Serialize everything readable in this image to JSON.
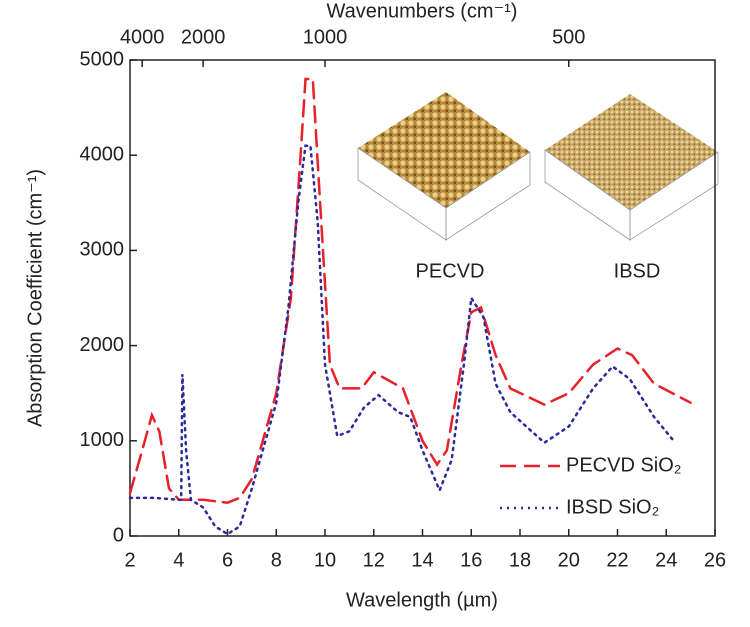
{
  "chart_data": {
    "type": "line",
    "x_label": "Wavelength (µm)",
    "y_label": "Absorption Coefficient (cm⁻¹)",
    "x2_label": "Wavenumbers (cm⁻¹)",
    "xlim": [
      2,
      26
    ],
    "xticks": [
      2,
      4,
      6,
      8,
      10,
      12,
      14,
      16,
      18,
      20,
      22,
      24,
      26
    ],
    "ylim": [
      0,
      5000
    ],
    "yticks": [
      0,
      1000,
      2000,
      3000,
      4000,
      5000
    ],
    "x2ticks": [
      4000,
      2000,
      1000,
      500
    ],
    "legend": "lower right",
    "insets": [
      {
        "label": "PECVD"
      },
      {
        "label": "IBSD"
      }
    ],
    "series": [
      {
        "name": "PECVD SiO₂",
        "color": "#e8202a",
        "dash": "dashed",
        "x": [
          2,
          2.5,
          2.9,
          3.2,
          3.6,
          4,
          5,
          6,
          6.5,
          7,
          8,
          8.6,
          9,
          9.2,
          9.5,
          9.8,
          10.2,
          10.6,
          11.5,
          12,
          12.5,
          13.2,
          14,
          14.6,
          15,
          15.6,
          16,
          16.4,
          17,
          17.6,
          19,
          20,
          21,
          22,
          22.6,
          23.5,
          25
        ],
        "values": [
          450,
          900,
          1270,
          1100,
          500,
          380,
          380,
          350,
          400,
          600,
          1500,
          2500,
          4000,
          4800,
          4800,
          3500,
          1800,
          1550,
          1550,
          1720,
          1650,
          1550,
          1000,
          750,
          900,
          1800,
          2350,
          2400,
          1900,
          1550,
          1380,
          1500,
          1800,
          1970,
          1900,
          1600,
          1400
        ]
      },
      {
        "name": "IBSD SiO₂",
        "color": "#2a2a9a",
        "dash": "dotted",
        "x": [
          2,
          3,
          4,
          4.1,
          4.15,
          4.3,
          4.5,
          5,
          5.5,
          6,
          6.5,
          7,
          8,
          8.5,
          8.9,
          9.2,
          9.4,
          9.7,
          10,
          10.5,
          11,
          11.6,
          12.2,
          13,
          13.5,
          14,
          14.7,
          15.2,
          15.7,
          16,
          16.5,
          17,
          17.6,
          19,
          20,
          21,
          21.8,
          22.5,
          23.5,
          24.3
        ],
        "values": [
          400,
          400,
          380,
          380,
          1700,
          900,
          380,
          300,
          100,
          20,
          100,
          500,
          1400,
          2400,
          3500,
          4100,
          4100,
          3300,
          1800,
          1050,
          1100,
          1350,
          1480,
          1300,
          1250,
          900,
          480,
          800,
          1800,
          2500,
          2300,
          1600,
          1300,
          980,
          1150,
          1550,
          1780,
          1650,
          1250,
          1000
        ]
      }
    ]
  }
}
